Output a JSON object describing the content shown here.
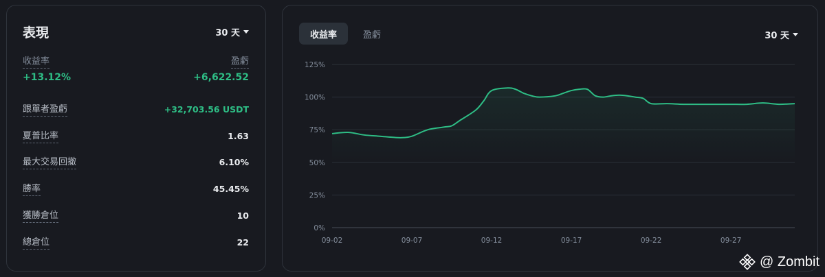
{
  "performance": {
    "title": "表現",
    "period": "30 天",
    "roi_label": "收益率",
    "roi_value": "+13.12%",
    "pnl_label": "盈虧",
    "pnl_value": "+6,622.52",
    "stats": [
      {
        "label": "跟單者盈虧",
        "value": "+32,703.56 USDT",
        "highlight": true
      },
      {
        "label": "夏普比率",
        "value": "1.63"
      },
      {
        "label": "最大交易回撤",
        "value": "6.10%"
      },
      {
        "label": "勝率",
        "value": "45.45%"
      },
      {
        "label": "獲勝倉位",
        "value": "10"
      },
      {
        "label": "總倉位",
        "value": "22"
      }
    ]
  },
  "chart_panel": {
    "tabs": [
      "收益率",
      "盈虧"
    ],
    "active_tab": 0,
    "period": "30 天"
  },
  "chart_data": {
    "type": "area",
    "title": "",
    "xlabel": "",
    "ylabel": "",
    "ylim": [
      0,
      125
    ],
    "y_ticks": [
      0,
      25,
      50,
      75,
      100,
      125
    ],
    "y_tick_labels": [
      "0%",
      "25%",
      "50%",
      "75%",
      "100%",
      "125%"
    ],
    "x_ticks": [
      2,
      7,
      12,
      17,
      22,
      27
    ],
    "x_tick_labels": [
      "09-02",
      "09-07",
      "09-12",
      "09-17",
      "09-22",
      "09-27"
    ],
    "xlim": [
      2,
      31
    ],
    "grid": true,
    "line_color": "#2ebd85",
    "x": [
      2,
      3,
      4,
      5,
      6,
      6.5,
      7,
      8,
      9,
      9.5,
      10,
      11,
      11.5,
      12,
      13,
      13.5,
      14,
      14.5,
      15,
      16,
      16.5,
      17,
      17.5,
      18,
      18.5,
      19,
      19.5,
      20,
      20.5,
      21,
      21.5,
      22,
      23,
      24,
      25,
      26,
      27,
      28,
      29,
      30,
      31
    ],
    "values": [
      72,
      73,
      71,
      70,
      69,
      69,
      70,
      75,
      77,
      78,
      82,
      90,
      97,
      105,
      107,
      106,
      103,
      101,
      100,
      101,
      103,
      105,
      106,
      106,
      101,
      100,
      101,
      101.5,
      101,
      100,
      99,
      95,
      95,
      94.5,
      94.5,
      94.5,
      94.5,
      94.5,
      95.5,
      94.5,
      95
    ]
  },
  "watermark": {
    "text": "@ Zombit",
    "icon": "binance-logo-icon"
  }
}
